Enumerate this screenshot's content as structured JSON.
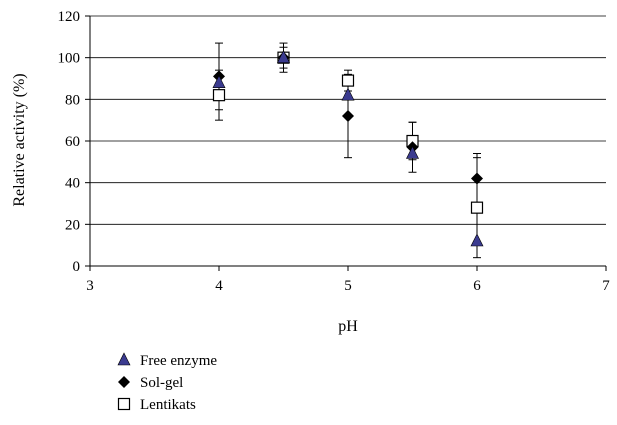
{
  "chart_data": {
    "type": "scatter",
    "xlabel": "pH",
    "ylabel": "Relative activity (%)",
    "xlim": [
      3,
      7
    ],
    "ylim": [
      0,
      120
    ],
    "xticks": [
      3,
      4,
      5,
      6,
      7
    ],
    "yticks": [
      0,
      20,
      40,
      60,
      80,
      100,
      120
    ],
    "grid": "horizontal",
    "legend_position": "bottom-left",
    "series": [
      {
        "name": "Free enzyme",
        "marker": "triangle",
        "color": "#3b3b8f",
        "points": [
          {
            "x": 4.0,
            "y": 88,
            "err": 0
          },
          {
            "x": 4.5,
            "y": 100,
            "err": 0
          },
          {
            "x": 5.0,
            "y": 82,
            "err": 0
          },
          {
            "x": 5.5,
            "y": 54,
            "err": 0
          },
          {
            "x": 6.0,
            "y": 12,
            "err": 0
          }
        ]
      },
      {
        "name": "Sol-gel",
        "marker": "diamond",
        "color": "#000000",
        "points": [
          {
            "x": 4.0,
            "y": 91,
            "err": 16
          },
          {
            "x": 4.5,
            "y": 100,
            "err": 7
          },
          {
            "x": 5.0,
            "y": 72,
            "err": 20
          },
          {
            "x": 5.5,
            "y": 57,
            "err": 12
          },
          {
            "x": 6.0,
            "y": 42,
            "err": 12
          }
        ]
      },
      {
        "name": "Lentikats",
        "marker": "square",
        "color": "#000000",
        "points": [
          {
            "x": 4.0,
            "y": 82,
            "err": 12
          },
          {
            "x": 4.5,
            "y": 100,
            "err": 5
          },
          {
            "x": 5.0,
            "y": 89,
            "err": 5
          },
          {
            "x": 5.5,
            "y": 60,
            "err": 9
          },
          {
            "x": 6.0,
            "y": 28,
            "err": 24
          }
        ]
      }
    ]
  }
}
